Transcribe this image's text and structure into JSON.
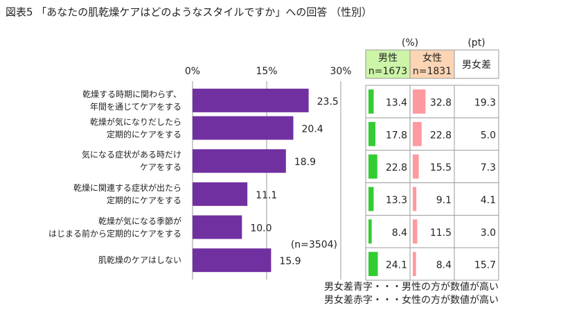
{
  "chart_data": {
    "type": "bar",
    "orientation": "horizontal",
    "title": "図表5 「あなたの肌乾燥ケアはどのようなスタイルですか」への回答 （性別）",
    "categories": [
      "乾燥する時期に関わらず、\n年間を通じてケアをする",
      "乾燥が気になりだしたら\n定期的にケアをする",
      "気になる症状がある時だけ\nケアをする",
      "乾燥に関連する症状が出たら\n定期的にケアをする",
      "乾燥が気になる季節が\nはじまる前から定期的にケアをする",
      "肌乾燥のケアはしない"
    ],
    "values": [
      23.5,
      20.4,
      18.9,
      11.1,
      10.0,
      15.9
    ],
    "value_labels": [
      "23.5",
      "20.4",
      "18.9",
      "11.1",
      "10.0",
      "15.9"
    ],
    "color": "#7030a0",
    "xlim": [
      0,
      30
    ],
    "xticks": [
      {
        "value": 0,
        "label": "0%"
      },
      {
        "value": 15,
        "label": "15%"
      },
      {
        "value": 30,
        "label": "30%"
      }
    ],
    "grid": true,
    "note": "(n=3504)"
  },
  "table": {
    "units": [
      "(%)",
      "(pt)"
    ],
    "bar_xlim": [
      0,
      100
    ],
    "columns": [
      {
        "name": "男性",
        "n": "n=1673",
        "header_color": "#ccf5a8",
        "color": "#33cc33",
        "values": [
          13.4,
          17.8,
          22.8,
          13.3,
          8.4,
          24.1
        ]
      },
      {
        "name": "女性",
        "n": "n=1831",
        "header_color": "#fcd5b4",
        "color": "#ff99a0",
        "values": [
          32.8,
          22.8,
          15.5,
          9.1,
          11.5,
          8.4
        ]
      }
    ],
    "diff": {
      "name": "男女差",
      "values": [
        19.3,
        5.0,
        7.3,
        4.1,
        3.0,
        15.7
      ],
      "value_labels": [
        "19.3",
        "5.0",
        "7.3",
        "4.1",
        "3.0",
        "15.7"
      ],
      "colors": [
        "#c00000",
        "#c00000",
        "#1f6fb5",
        "#1f6fb5",
        "#c00000",
        "#1f6fb5"
      ]
    },
    "notes": [
      {
        "text": "男女差青字・・・男性の方が数値が高い",
        "color": "#1f6fb5"
      },
      {
        "text": "男女差赤字・・・女性の方が数値が高い",
        "color": "#c00000"
      }
    ]
  }
}
